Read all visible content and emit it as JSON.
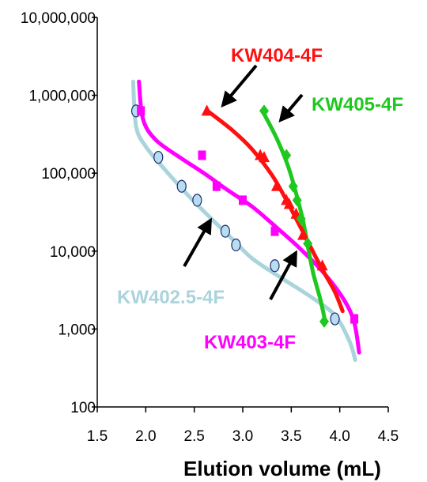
{
  "chart_data": {
    "type": "scatter",
    "xlabel": "Elution volume (mL)",
    "ylabel": "",
    "xlim": [
      1.5,
      4.5
    ],
    "ylim": [
      100,
      10000000
    ],
    "yscale": "log",
    "grid": false,
    "x_ticks": [
      "1.5",
      "2.0",
      "2.5",
      "3.0",
      "3.5",
      "4.0",
      "4.5"
    ],
    "y_ticks": [
      "100",
      "1,000",
      "10,000",
      "100,000",
      "1,000,000",
      "10,000,000"
    ],
    "series": [
      {
        "name": "KW402.5-4F",
        "color": "#aad4dc",
        "marker": "ellipse",
        "points": [
          [
            1.9,
            630000
          ],
          [
            2.13,
            160000
          ],
          [
            2.37,
            68000
          ],
          [
            2.53,
            45000
          ],
          [
            2.82,
            18000
          ],
          [
            2.93,
            12000
          ],
          [
            3.33,
            6500
          ],
          [
            3.95,
            1350
          ]
        ],
        "curve": [
          [
            1.87,
            1500000
          ],
          [
            1.9,
            400000
          ],
          [
            2.0,
            220000
          ],
          [
            2.2,
            110000
          ],
          [
            2.45,
            50000
          ],
          [
            2.65,
            28000
          ],
          [
            2.9,
            14000
          ],
          [
            3.1,
            8000
          ],
          [
            3.4,
            4500
          ],
          [
            3.7,
            2600
          ],
          [
            3.95,
            1500
          ],
          [
            4.1,
            700
          ],
          [
            4.16,
            400
          ]
        ]
      },
      {
        "name": "KW403-4F",
        "color": "#ff00ff",
        "marker": "square",
        "points": [
          [
            1.95,
            630000
          ],
          [
            2.58,
            170000
          ],
          [
            2.73,
            68000
          ],
          [
            3.0,
            45000
          ],
          [
            3.33,
            18000
          ],
          [
            4.15,
            1350
          ]
        ],
        "curve": [
          [
            1.93,
            1500000
          ],
          [
            1.97,
            500000
          ],
          [
            2.1,
            270000
          ],
          [
            2.35,
            160000
          ],
          [
            2.6,
            100000
          ],
          [
            2.85,
            60000
          ],
          [
            3.1,
            37000
          ],
          [
            3.35,
            20000
          ],
          [
            3.6,
            10500
          ],
          [
            3.85,
            5000
          ],
          [
            4.05,
            2300
          ],
          [
            4.15,
            1200
          ],
          [
            4.2,
            500
          ]
        ]
      },
      {
        "name": "KW404-4F",
        "color": "#ff1010",
        "marker": "triangle",
        "points": [
          [
            2.63,
            630000
          ],
          [
            3.18,
            170000
          ],
          [
            3.22,
            160000
          ],
          [
            3.35,
            68000
          ],
          [
            3.45,
            45000
          ],
          [
            3.48,
            40000
          ],
          [
            3.55,
            30000
          ],
          [
            3.62,
            16000
          ],
          [
            3.82,
            6500
          ]
        ],
        "curve": [
          [
            2.63,
            640000
          ],
          [
            2.9,
            350000
          ],
          [
            3.1,
            200000
          ],
          [
            3.3,
            95000
          ],
          [
            3.45,
            45000
          ],
          [
            3.55,
            26000
          ],
          [
            3.65,
            15000
          ],
          [
            3.75,
            8500
          ],
          [
            3.85,
            5000
          ],
          [
            3.95,
            3000
          ],
          [
            4.03,
            1700
          ]
        ]
      },
      {
        "name": "KW405-4F",
        "color": "#1ec81e",
        "marker": "diamond",
        "points": [
          [
            3.22,
            630000
          ],
          [
            3.45,
            170000
          ],
          [
            3.52,
            68000
          ],
          [
            3.56,
            45000
          ],
          [
            3.6,
            26000
          ],
          [
            3.67,
            12500
          ],
          [
            3.84,
            1250
          ]
        ],
        "curve": [
          [
            3.2,
            640000
          ],
          [
            3.35,
            280000
          ],
          [
            3.47,
            120000
          ],
          [
            3.55,
            55000
          ],
          [
            3.62,
            25000
          ],
          [
            3.68,
            10000
          ],
          [
            3.73,
            5000
          ],
          [
            3.8,
            2400
          ],
          [
            3.85,
            1250
          ]
        ]
      }
    ],
    "labels": [
      {
        "text": "KW404-4F",
        "series": 2
      },
      {
        "text": "KW405-4F",
        "series": 3
      },
      {
        "text": "KW402.5-4F",
        "series": 0
      },
      {
        "text": "KW403-4F",
        "series": 1
      }
    ]
  }
}
